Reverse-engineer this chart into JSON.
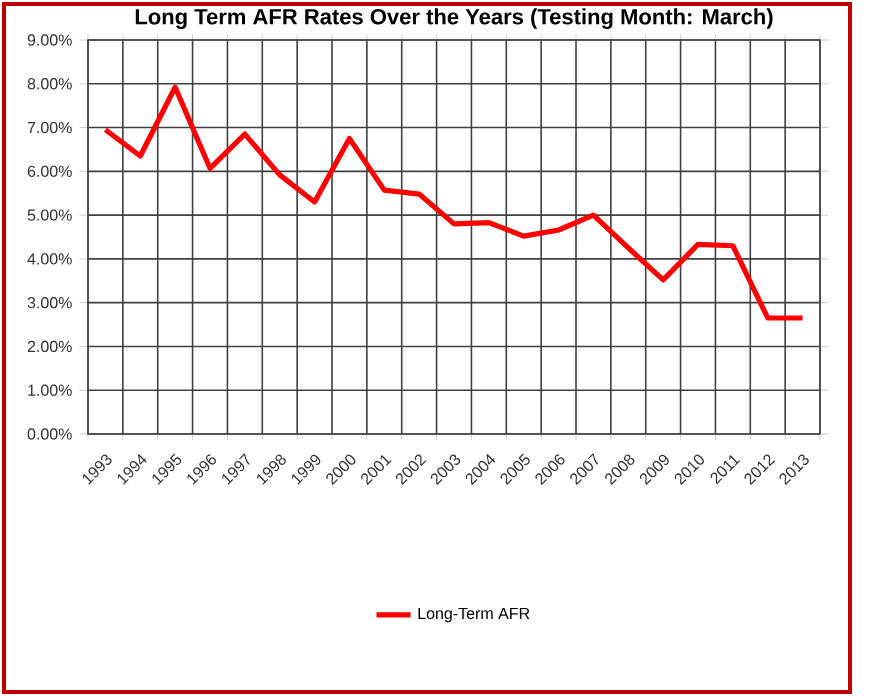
{
  "chart_data": {
    "type": "line",
    "title": "Long Term AFR Rates Over the Years (Testing Month: March)",
    "categories": [
      "1993",
      "1994",
      "1995",
      "1996",
      "1997",
      "1998",
      "1999",
      "2000",
      "2001",
      "2002",
      "2003",
      "2004",
      "2005",
      "2006",
      "2007",
      "2008",
      "2009",
      "2010",
      "2011",
      "2012",
      "2013"
    ],
    "series": [
      {
        "name": "Long-Term AFR",
        "color": "#ff0000",
        "values": [
          6.95,
          6.35,
          7.92,
          6.07,
          6.85,
          5.92,
          5.3,
          6.75,
          5.57,
          5.48,
          4.8,
          4.83,
          4.52,
          4.66,
          5.0,
          4.25,
          3.52,
          4.33,
          4.3,
          2.65,
          2.65
        ]
      }
    ],
    "ylim": [
      0,
      9
    ],
    "yticks": [
      {
        "value": 0,
        "label": "0.00%"
      },
      {
        "value": 1,
        "label": "1.00%"
      },
      {
        "value": 2,
        "label": "2.00%"
      },
      {
        "value": 3,
        "label": "3.00%"
      },
      {
        "value": 4,
        "label": "4.00%"
      },
      {
        "value": 5,
        "label": "5.00%"
      },
      {
        "value": 6,
        "label": "6.00%"
      },
      {
        "value": 7,
        "label": "7.00%"
      },
      {
        "value": 8,
        "label": "8.00%"
      },
      {
        "value": 9,
        "label": "9.00%"
      }
    ],
    "grid": true,
    "legend": "bottom",
    "marker": "none",
    "line_style": "solid"
  }
}
